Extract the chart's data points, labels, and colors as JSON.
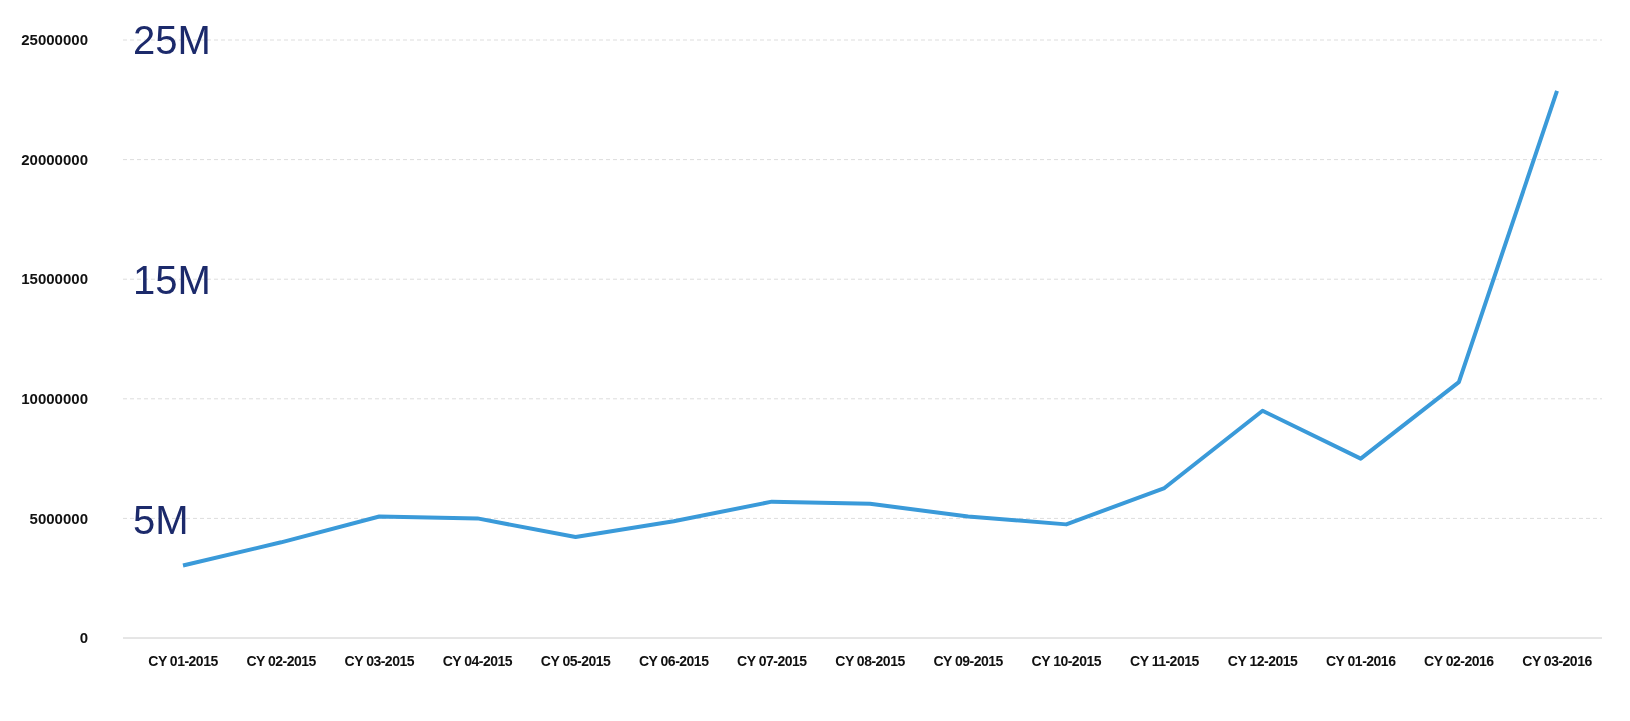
{
  "chart_data": {
    "type": "line",
    "categories": [
      "CY 01-2015",
      "CY 02-2015",
      "CY 03-2015",
      "CY 04-2015",
      "CY 05-2015",
      "CY 06-2015",
      "CY 07-2015",
      "CY 08-2015",
      "CY 09-2015",
      "CY 10-2015",
      "CY 11-2015",
      "CY 12-2015",
      "CY 01-2016",
      "CY 02-2016",
      "CY 03-2016"
    ],
    "series": [
      {
        "color": "#3a9ad9",
        "values": [
          3030000,
          4000000,
          5080000,
          5000000,
          4220000,
          4880000,
          5700000,
          5610000,
          5080000,
          4750000,
          6270000,
          9500000,
          7500000,
          10700000,
          22870000
        ]
      }
    ],
    "ylim": [
      0,
      25000000
    ],
    "yticks": [
      0,
      5000000,
      10000000,
      15000000,
      20000000,
      25000000
    ],
    "grid": "y",
    "marker": "none",
    "line_style": "solid",
    "annotations": [
      "25M",
      "15M",
      "5M"
    ]
  }
}
